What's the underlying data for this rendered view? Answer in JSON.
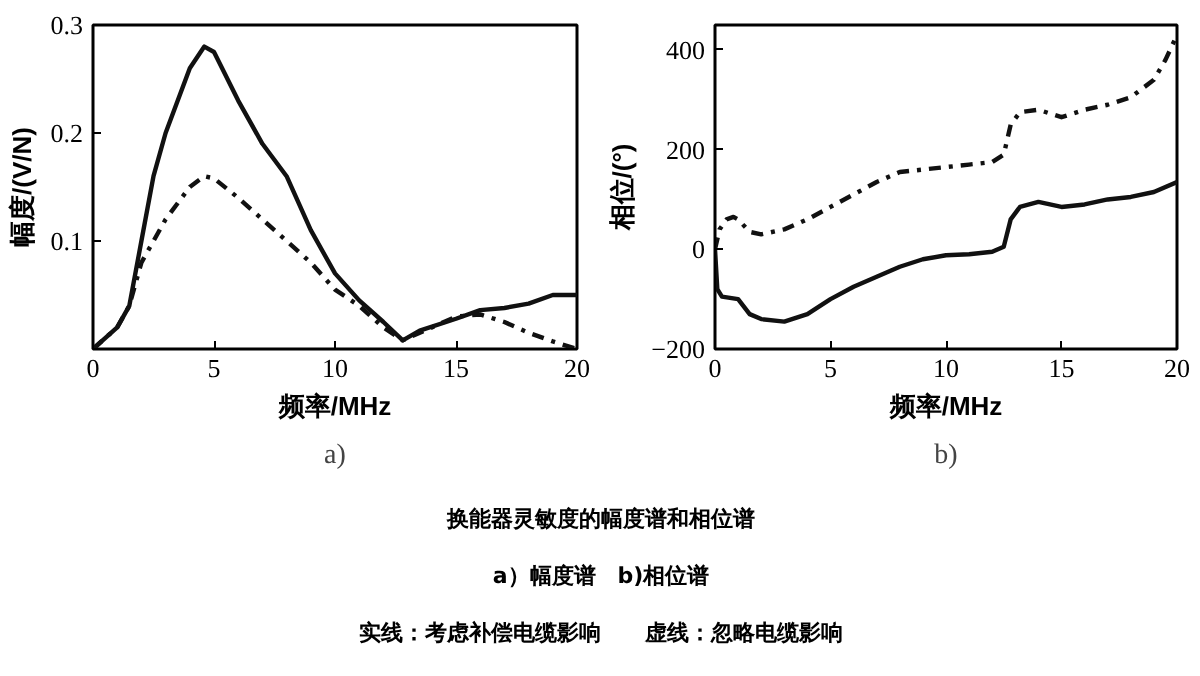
{
  "chart_data": [
    {
      "type": "line",
      "xlabel": "频率/MHz",
      "ylabel": "幅度/(V/N)",
      "annotations": [
        "a)"
      ],
      "xlim": [
        0,
        20
      ],
      "ylim": [
        0,
        0.3
      ],
      "xticks": [
        0,
        5,
        10,
        15,
        20
      ],
      "yticks": [
        0.1,
        0.2,
        0.3
      ],
      "grid": false,
      "series": [
        {
          "color": "#111111",
          "line_style": "solid",
          "x": [
            0,
            1,
            1.5,
            2,
            2.5,
            3,
            4,
            4.6,
            5,
            6,
            7,
            8,
            9,
            10,
            11,
            12,
            12.8,
            13.5,
            15,
            16,
            17,
            18,
            19,
            20
          ],
          "values": [
            0,
            0.02,
            0.04,
            0.1,
            0.16,
            0.2,
            0.26,
            0.28,
            0.275,
            0.23,
            0.19,
            0.16,
            0.11,
            0.07,
            0.045,
            0.025,
            0.008,
            0.017,
            0.028,
            0.036,
            0.038,
            0.042,
            0.05,
            0.05
          ]
        },
        {
          "color": "#111111",
          "line_style": "dashed",
          "x": [
            0,
            1,
            1.5,
            2,
            2.5,
            3,
            4,
            4.6,
            5,
            6,
            7,
            8,
            9,
            10,
            11,
            12,
            12.8,
            14,
            15,
            16,
            17,
            18,
            19,
            20
          ],
          "values": [
            0,
            0.02,
            0.04,
            0.08,
            0.1,
            0.12,
            0.15,
            0.16,
            0.158,
            0.14,
            0.12,
            0.1,
            0.08,
            0.055,
            0.04,
            0.02,
            0.008,
            0.02,
            0.03,
            0.032,
            0.025,
            0.015,
            0.007,
            0
          ]
        }
      ]
    },
    {
      "type": "line",
      "xlabel": "频率/MHz",
      "ylabel": "相位/(°)",
      "annotations": [
        "b)"
      ],
      "xlim": [
        0,
        20
      ],
      "ylim": [
        -200,
        450
      ],
      "xticks": [
        0,
        5,
        10,
        15,
        20
      ],
      "yticks": [
        -200,
        0,
        200,
        400
      ],
      "grid": false,
      "series": [
        {
          "color": "#111111",
          "line_style": "dashed",
          "x": [
            0,
            0.2,
            0.5,
            0.8,
            1,
            1.5,
            2,
            3,
            4,
            5,
            6,
            7,
            8,
            9,
            10,
            11,
            12,
            12.5,
            12.8,
            13.2,
            14,
            15,
            16,
            17,
            18,
            19,
            19.5,
            20
          ],
          "values": [
            0,
            40,
            60,
            65,
            60,
            35,
            30,
            40,
            60,
            85,
            110,
            135,
            155,
            160,
            165,
            170,
            175,
            190,
            250,
            275,
            280,
            265,
            280,
            290,
            305,
            340,
            380,
            430
          ]
        },
        {
          "color": "#111111",
          "line_style": "solid",
          "x": [
            0,
            0.1,
            0.3,
            1,
            1.5,
            2,
            3,
            4,
            5,
            6,
            7,
            8,
            9,
            10,
            11,
            12,
            12.5,
            12.8,
            13.2,
            14,
            15,
            16,
            17,
            18,
            19,
            20
          ],
          "values": [
            0,
            -80,
            -95,
            -100,
            -130,
            -140,
            -145,
            -130,
            -100,
            -75,
            -55,
            -35,
            -20,
            -12,
            -10,
            -5,
            5,
            60,
            85,
            95,
            85,
            90,
            100,
            105,
            115,
            135
          ]
        }
      ]
    },
    {
      "type": "other",
      "annotations": [
        "换能器灵敏度的幅度谱和相位谱",
        "a）幅度谱　b)相位谱",
        "实线：考虑补偿电缆影响　　虚线：忽略电缆影响"
      ]
    }
  ]
}
